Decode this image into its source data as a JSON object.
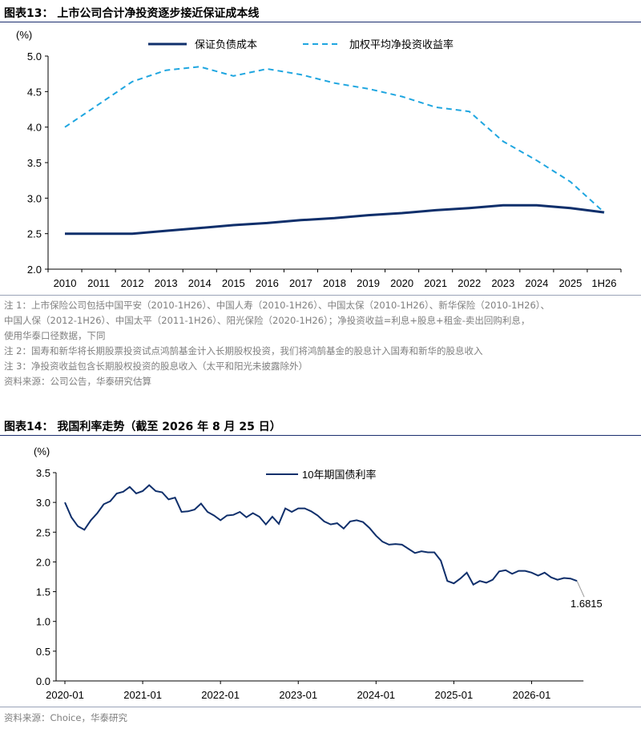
{
  "figure13": {
    "title": "图表13：  上市公司合计净投资逐步接近保证成本线",
    "notes": [
      "注 1：上市保险公司包括中国平安（2010-1H26）、中国人寿（2010-1H26）、中国太保（2010-1H26）、新华保险（2010-1H26）、",
      "中国人保（2012-1H26）、中国太平（2011-1H26）、阳光保险（2020-1H26）；净投资收益=利息+股息+租金-卖出回购利息，",
      "使用华泰口径数据，下同",
      "注 2：国寿和新华将长期股票投资试点鸿鹄基金计入长期股权投资，我们将鸿鹄基金的股息计入国寿和新华的股息收入",
      "注 3：净投资收益包含长期股权投资的股息收入（太平和阳光未披露除外）",
      "资料来源：公司公告，华泰研究估算"
    ]
  },
  "figure14": {
    "title": "图表14：  我国利率走势（截至 2026 年 8 月 25 日）",
    "source": "资料来源：Choice，华泰研究"
  },
  "chart_data": [
    {
      "type": "line",
      "unit_label": "(%)",
      "categories": [
        "2010",
        "2011",
        "2012",
        "2013",
        "2014",
        "2015",
        "2016",
        "2017",
        "2018",
        "2019",
        "2020",
        "2021",
        "2022",
        "2023",
        "2024",
        "2025",
        "1H26"
      ],
      "ylim": [
        2.0,
        5.0
      ],
      "yticks": [
        "2.0",
        "2.5",
        "3.0",
        "3.5",
        "4.0",
        "4.5",
        "5.0"
      ],
      "grid": false,
      "legend_position": "top",
      "series": [
        {
          "name": "保证负债成本",
          "color": "#0f2f6b",
          "style": "solid",
          "values": [
            2.5,
            2.5,
            2.5,
            2.54,
            2.58,
            2.62,
            2.65,
            2.69,
            2.72,
            2.76,
            2.79,
            2.83,
            2.86,
            2.9,
            2.9,
            2.86,
            2.8
          ]
        },
        {
          "name": "加权平均净投资收益率",
          "color": "#1fa6e0",
          "style": "dashed",
          "values": [
            4.0,
            4.32,
            4.64,
            4.8,
            4.85,
            4.72,
            4.82,
            4.74,
            4.62,
            4.54,
            4.43,
            4.28,
            4.22,
            3.8,
            3.53,
            3.23,
            2.8
          ]
        }
      ]
    },
    {
      "type": "line",
      "unit_label": "(%)",
      "xtick_labels": [
        "2020-01",
        "2021-01",
        "2022-01",
        "2023-01",
        "2024-01",
        "2025-01",
        "2026-01"
      ],
      "xlim": [
        "2020-01",
        "2026-09"
      ],
      "ylim": [
        0.0,
        3.5
      ],
      "yticks": [
        "0.0",
        "0.5",
        "1.0",
        "1.5",
        "2.0",
        "2.5",
        "3.0",
        "3.5"
      ],
      "grid": false,
      "legend_position": "top",
      "annotation": "1.6815",
      "series": [
        {
          "name": "10年期国债利率",
          "color": "#0f2f6b",
          "x": [
            "2020-01",
            "2020-02",
            "2020-03",
            "2020-04",
            "2020-05",
            "2020-06",
            "2020-07",
            "2020-08",
            "2020-09",
            "2020-10",
            "2020-11",
            "2020-12",
            "2021-01",
            "2021-02",
            "2021-03",
            "2021-04",
            "2021-05",
            "2021-06",
            "2021-07",
            "2021-08",
            "2021-09",
            "2021-10",
            "2021-11",
            "2021-12",
            "2022-01",
            "2022-02",
            "2022-03",
            "2022-04",
            "2022-05",
            "2022-06",
            "2022-07",
            "2022-08",
            "2022-09",
            "2022-10",
            "2022-11",
            "2022-12",
            "2023-01",
            "2023-02",
            "2023-03",
            "2023-04",
            "2023-05",
            "2023-06",
            "2023-07",
            "2023-08",
            "2023-09",
            "2023-10",
            "2023-11",
            "2023-12",
            "2024-01",
            "2024-02",
            "2024-03",
            "2024-04",
            "2024-05",
            "2024-06",
            "2024-07",
            "2024-08",
            "2024-09",
            "2024-10",
            "2024-11",
            "2024-12",
            "2025-01",
            "2025-02",
            "2025-03",
            "2025-04",
            "2025-05",
            "2025-06",
            "2025-07",
            "2025-08",
            "2025-09",
            "2025-10",
            "2025-11",
            "2025-12",
            "2026-01",
            "2026-02",
            "2026-03",
            "2026-04",
            "2026-05",
            "2026-06",
            "2026-07",
            "2026-08"
          ],
          "values": [
            3.0,
            2.75,
            2.6,
            2.54,
            2.7,
            2.82,
            2.97,
            3.02,
            3.15,
            3.18,
            3.26,
            3.15,
            3.19,
            3.29,
            3.19,
            3.17,
            3.05,
            3.08,
            2.84,
            2.85,
            2.88,
            2.98,
            2.84,
            2.78,
            2.7,
            2.78,
            2.79,
            2.84,
            2.75,
            2.82,
            2.76,
            2.63,
            2.76,
            2.64,
            2.9,
            2.84,
            2.9,
            2.9,
            2.85,
            2.78,
            2.68,
            2.63,
            2.65,
            2.56,
            2.68,
            2.7,
            2.67,
            2.57,
            2.44,
            2.34,
            2.29,
            2.3,
            2.29,
            2.22,
            2.15,
            2.18,
            2.16,
            2.16,
            2.02,
            1.68,
            1.64,
            1.72,
            1.82,
            1.62,
            1.68,
            1.65,
            1.7,
            1.84,
            1.86,
            1.8,
            1.85,
            1.85,
            1.82,
            1.77,
            1.82,
            1.74,
            1.7,
            1.73,
            1.72,
            1.68
          ]
        }
      ]
    }
  ]
}
